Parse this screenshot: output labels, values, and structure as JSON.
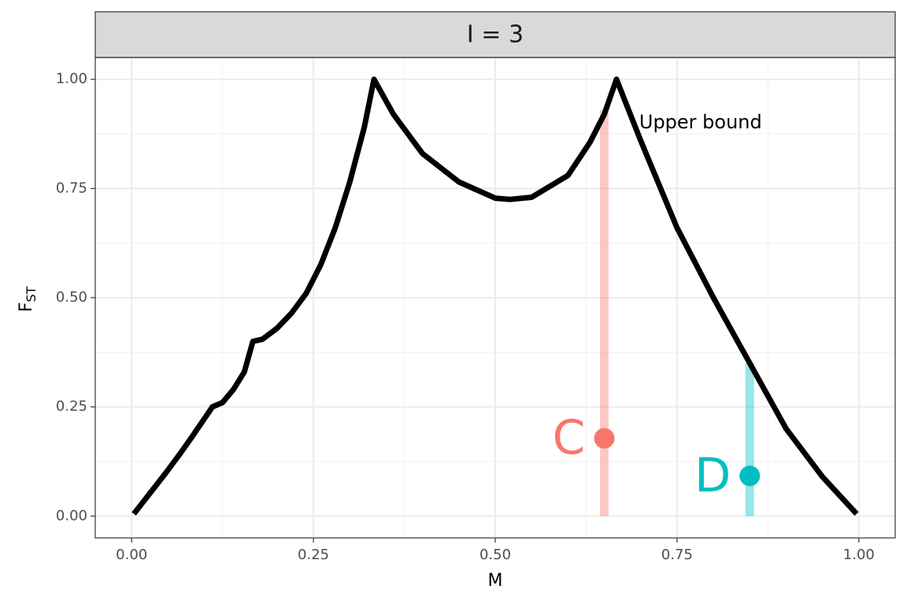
{
  "chart_data": {
    "type": "line",
    "strip_title": "I = 3",
    "xlabel": "M",
    "ylabel": "F",
    "ylabel_sub": "ST",
    "xlim": [
      -0.05,
      1.05
    ],
    "ylim": [
      -0.05,
      1.05
    ],
    "xticks": [
      {
        "value": 0,
        "label": "0.00"
      },
      0.25,
      {
        "value": 0.5,
        "label": "0.50"
      },
      0.75,
      {
        "value": 1,
        "label": "1.00"
      }
    ],
    "yticks": [
      {
        "value": 0,
        "label": "0.00"
      },
      0.25,
      {
        "value": 0.5,
        "label": "0.50"
      },
      0.75,
      {
        "value": 1,
        "label": "1.00"
      }
    ],
    "grid": true,
    "series": [
      {
        "color": "#000000",
        "x": [
          0.003,
          0.0476,
          0.0556,
          0.0667,
          0.0833,
          0.1111,
          0.125,
          0.14,
          0.155,
          0.1667,
          0.18,
          0.2,
          0.22,
          0.24,
          0.26,
          0.28,
          0.3,
          0.32,
          0.3333,
          0.36,
          0.4,
          0.45,
          0.5,
          0.52,
          0.55,
          0.6,
          0.63,
          0.65,
          0.6667,
          0.7,
          0.75,
          0.8,
          0.85,
          0.9,
          0.95,
          0.997
        ],
        "y": [
          0.005,
          0.1,
          0.118,
          0.143,
          0.182,
          0.25,
          0.26,
          0.29,
          0.33,
          0.4,
          0.405,
          0.43,
          0.465,
          0.51,
          0.575,
          0.66,
          0.765,
          0.89,
          1.0,
          0.92,
          0.83,
          0.765,
          0.728,
          0.725,
          0.73,
          0.78,
          0.855,
          0.92,
          1.0,
          0.86,
          0.66,
          0.5,
          0.35,
          0.2,
          0.09,
          0.005
        ]
      }
    ],
    "markers": [
      {
        "name": "C",
        "color": "#F8766D",
        "x": 0.65,
        "y": 0.178,
        "y_top": 0.93
      },
      {
        "name": "D",
        "color": "#00BFC4",
        "x": 0.85,
        "y": 0.092,
        "y_top": 0.35
      }
    ],
    "annotation": {
      "text": "Upper bound",
      "x": 0.698,
      "y": 0.9
    }
  }
}
